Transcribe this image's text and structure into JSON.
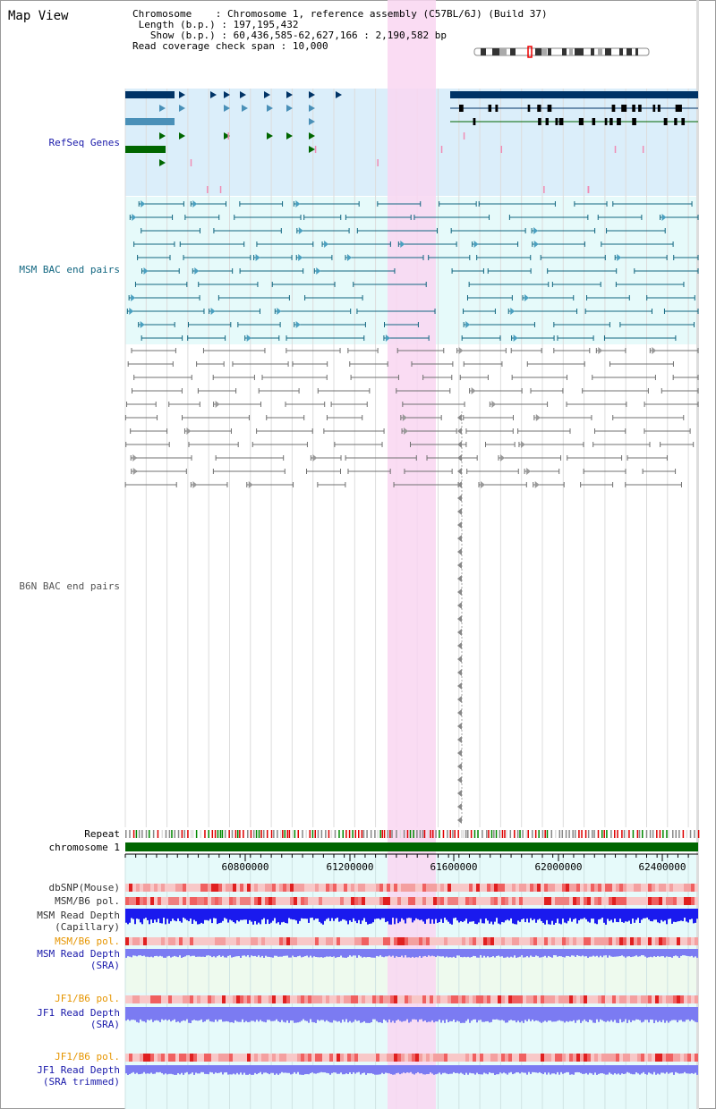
{
  "title": "Map View",
  "info": {
    "chromosome_label": "Chromosome",
    "chromosome_value": "Chromosome 1, reference assembly (C57BL/6J) (Build 37)",
    "length_label": "Length (b.p.)",
    "length_value": "197,195,432",
    "show_label": "Show (b.p.)",
    "show_value": "60,436,585-62,627,166 : 2,190,582 bp",
    "span_label": "Read coverage check span",
    "span_value": "10,000"
  },
  "tracks": {
    "refseq": "RefSeq Genes",
    "msm_bac": "MSM BAC end pairs",
    "b6n_bac": "B6N BAC end pairs",
    "repeat": "Repeat",
    "chromosome": "chromosome 1",
    "dbsnp": "dbSNP(Mouse)",
    "msm_b6_pol": "MSM/B6 pol.",
    "msm_depth_cap_1": "MSM Read Depth",
    "msm_depth_cap_2": "(Capillary)",
    "msm_b6_pol_sra": "MSM/B6 pol.",
    "msm_depth_sra_1": "MSM Read Depth",
    "msm_depth_sra_2": "(SRA)",
    "jf1_pol": "JF1/B6 pol.",
    "jf1_depth_1": "JF1 Read Depth",
    "jf1_depth_2": "(SRA)",
    "jf1_pol_trim": "JF1/B6 pol.",
    "jf1_trim_1": "JF1 Read Depth",
    "jf1_trim_2": "(SRA trimmed)"
  },
  "axis_ticks": [
    "60800000",
    "61200000",
    "61600000",
    "62000000",
    "62400000"
  ],
  "colors": {
    "refseq_bg": "#dbeefa",
    "bac_bg": "#e6fafa",
    "highlight": "#f9d6f1",
    "chrom_bar": "#006600",
    "depth_blue": "#1a1aee",
    "depth_light": "#7b7bf2"
  }
}
